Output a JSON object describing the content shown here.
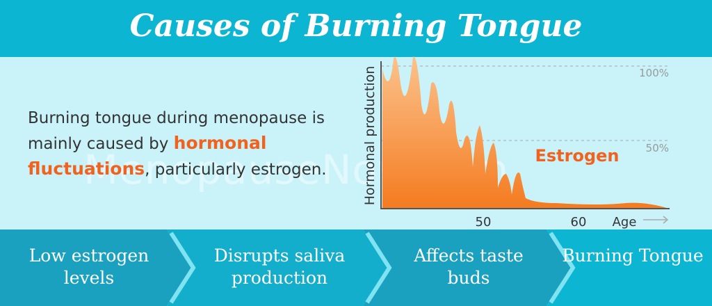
{
  "header": {
    "title": "Causes of Burning Tongue"
  },
  "text": {
    "before": "Burning tongue during menopause is mainly caused by ",
    "highlight": "hormonal fluctuations",
    "after": ", particularly estrogen."
  },
  "watermark": "MenopauseNow.com",
  "graph": {
    "y_label": "Hormonal production",
    "x_label": "Age",
    "series_label": "Estrogen",
    "y_marks": [
      "100%",
      "50%"
    ],
    "x_marks": [
      "50",
      "60"
    ]
  },
  "steps": [
    "Low estrogen levels",
    "Disrupts saliva production",
    "Affects taste buds",
    "Burning Tongue"
  ]
}
